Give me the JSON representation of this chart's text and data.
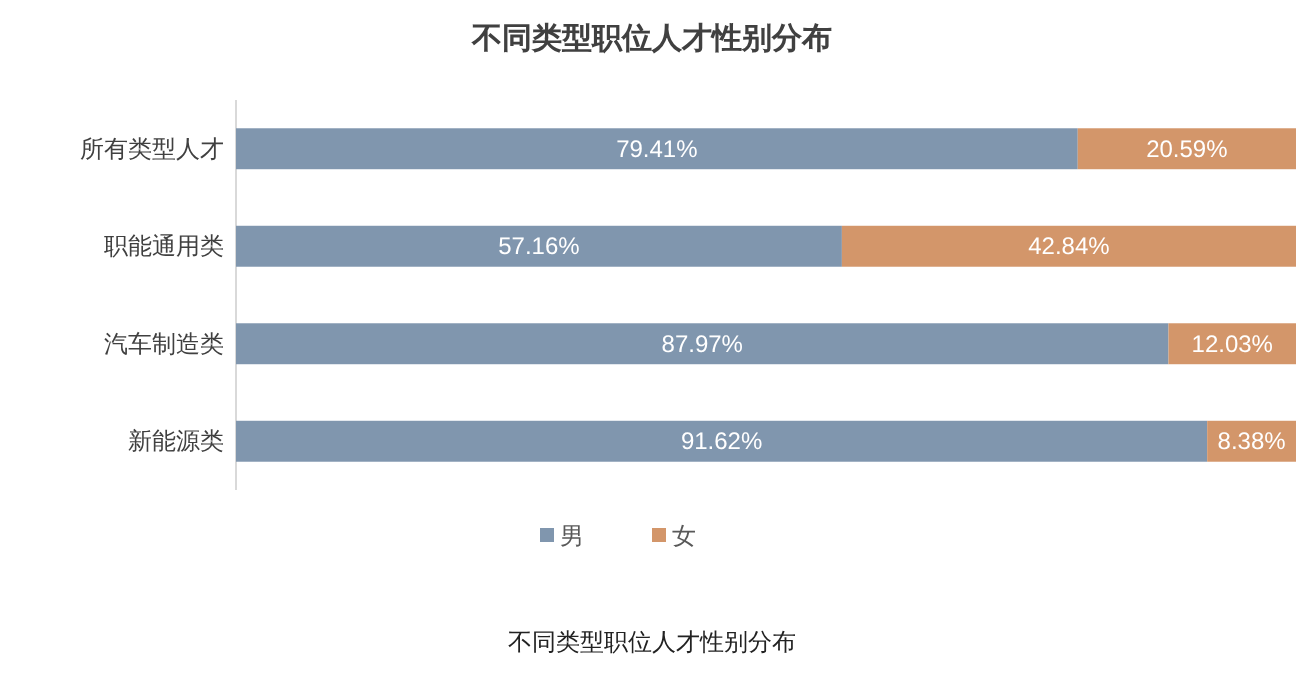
{
  "chart_data": {
    "type": "bar",
    "orientation": "horizontal",
    "stacked": true,
    "title": "不同类型职位人才性别分布",
    "categories": [
      "所有类型人才",
      "职能通用类",
      "汽车制造类",
      "新能源类"
    ],
    "series": [
      {
        "name": "男",
        "color": "#8096ae",
        "values": [
          79.41,
          57.16,
          87.97,
          91.62
        ],
        "value_labels": [
          "79.41%",
          "57.16%",
          "87.97%",
          "91.62%"
        ]
      },
      {
        "name": "女",
        "color": "#d3966a",
        "values": [
          20.59,
          42.84,
          12.03,
          8.38
        ],
        "value_labels": [
          "20.59%",
          "42.84%",
          "12.03%",
          "8.38%"
        ]
      }
    ],
    "legend": "bottom",
    "annotations": [
      "不同类型职位人才性别分布"
    ]
  }
}
